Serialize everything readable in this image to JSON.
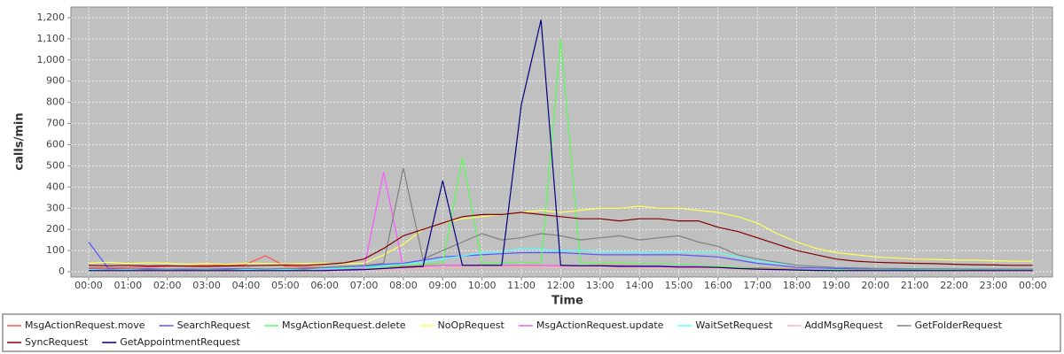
{
  "chart_data": {
    "type": "line",
    "x_label": "Time",
    "y_label": "calls/min",
    "xlim": [
      -0.45,
      24.5
    ],
    "ylim": [
      -25,
      1250
    ],
    "grid": true,
    "legend": "bottom",
    "xticks": [
      {
        "value": 0,
        "label": "00:00"
      },
      {
        "value": 1,
        "label": "01:00"
      },
      {
        "value": 2,
        "label": "02:00"
      },
      {
        "value": 3,
        "label": "03:00"
      },
      {
        "value": 4,
        "label": "04:00"
      },
      {
        "value": 5,
        "label": "05:00"
      },
      {
        "value": 6,
        "label": "06:00"
      },
      {
        "value": 7,
        "label": "07:00"
      },
      {
        "value": 8,
        "label": "08:00"
      },
      {
        "value": 9,
        "label": "09:00"
      },
      {
        "value": 10,
        "label": "10:00"
      },
      {
        "value": 11,
        "label": "11:00"
      },
      {
        "value": 12,
        "label": "12:00"
      },
      {
        "value": 13,
        "label": "13:00"
      },
      {
        "value": 14,
        "label": "14:00"
      },
      {
        "value": 15,
        "label": "15:00"
      },
      {
        "value": 16,
        "label": "16:00"
      },
      {
        "value": 17,
        "label": "17:00"
      },
      {
        "value": 18,
        "label": "18:00"
      },
      {
        "value": 19,
        "label": "19:00"
      },
      {
        "value": 20,
        "label": "20:00"
      },
      {
        "value": 21,
        "label": "21:00"
      },
      {
        "value": 22,
        "label": "22:00"
      },
      {
        "value": 23,
        "label": "23:00"
      },
      {
        "value": 24,
        "label": "00:00"
      }
    ],
    "yticks": [
      0,
      100,
      200,
      300,
      400,
      500,
      600,
      700,
      800,
      900,
      {
        "value": 1000,
        "label": "1,000"
      },
      {
        "value": 1100,
        "label": "1,100"
      },
      {
        "value": 1200,
        "label": "1,200"
      }
    ],
    "x": [
      0,
      0.5,
      1,
      1.5,
      2,
      2.5,
      3,
      3.5,
      4,
      4.5,
      5,
      5.5,
      6,
      6.5,
      7,
      7.5,
      8,
      8.5,
      9,
      9.5,
      10,
      10.5,
      11,
      11.5,
      12,
      12.5,
      13,
      13.5,
      14,
      14.5,
      15,
      15.5,
      16,
      16.5,
      17,
      17.5,
      18,
      18.5,
      19,
      19.5,
      20,
      20.5,
      21,
      21.5,
      22,
      22.5,
      23,
      23.5,
      24
    ],
    "series": [
      {
        "name": "MsgActionRequest.move",
        "color": "#ff5555",
        "values": [
          20,
          18,
          20,
          22,
          25,
          28,
          30,
          32,
          35,
          75,
          25,
          22,
          20,
          20,
          22,
          25,
          25,
          28,
          30,
          30,
          32,
          30,
          30,
          30,
          28,
          28,
          30,
          30,
          28,
          28,
          25,
          25,
          22,
          20,
          18,
          15,
          12,
          10,
          10,
          10,
          10,
          10,
          10,
          10,
          10,
          10,
          10,
          10,
          10
        ]
      },
      {
        "name": "SearchRequest",
        "color": "#5555ff",
        "values": [
          140,
          15,
          12,
          14,
          12,
          12,
          12,
          14,
          15,
          12,
          14,
          15,
          18,
          20,
          25,
          35,
          40,
          55,
          70,
          75,
          80,
          85,
          90,
          90,
          90,
          85,
          80,
          80,
          80,
          80,
          80,
          75,
          70,
          55,
          40,
          30,
          20,
          18,
          15,
          14,
          14,
          13,
          12,
          12,
          12,
          12,
          12,
          12,
          12
        ]
      },
      {
        "name": "MsgActionRequest.delete",
        "color": "#55ff55",
        "values": [
          10,
          8,
          8,
          8,
          8,
          8,
          8,
          8,
          8,
          8,
          8,
          10,
          12,
          15,
          20,
          25,
          30,
          35,
          40,
          540,
          40,
          40,
          45,
          40,
          1100,
          40,
          40,
          40,
          38,
          38,
          35,
          30,
          25,
          20,
          15,
          12,
          10,
          10,
          10,
          8,
          8,
          8,
          8,
          8,
          8,
          8,
          8,
          8,
          8
        ]
      },
      {
        "name": "NoOpRequest",
        "color": "#ffff55",
        "values": [
          40,
          45,
          38,
          42,
          40,
          36,
          38,
          35,
          40,
          38,
          36,
          38,
          40,
          38,
          40,
          80,
          130,
          200,
          230,
          250,
          260,
          270,
          280,
          290,
          280,
          290,
          300,
          300,
          310,
          300,
          300,
          290,
          280,
          260,
          230,
          180,
          140,
          110,
          90,
          80,
          70,
          65,
          60,
          58,
          55,
          55,
          52,
          50,
          50
        ]
      },
      {
        "name": "MsgActionRequest.update",
        "color": "#ff55ff",
        "values": [
          5,
          5,
          5,
          5,
          5,
          5,
          5,
          5,
          5,
          5,
          5,
          5,
          8,
          10,
          15,
          470,
          20,
          25,
          30,
          30,
          30,
          30,
          30,
          30,
          28,
          28,
          28,
          28,
          28,
          28,
          25,
          25,
          20,
          15,
          12,
          10,
          8,
          8,
          6,
          6,
          5,
          5,
          5,
          5,
          5,
          5,
          5,
          5,
          5
        ]
      },
      {
        "name": "WaitSetRequest",
        "color": "#55ffff",
        "values": [
          10,
          10,
          10,
          10,
          10,
          10,
          10,
          10,
          10,
          10,
          10,
          12,
          14,
          18,
          22,
          28,
          35,
          45,
          60,
          75,
          90,
          95,
          110,
          105,
          100,
          100,
          95,
          95,
          90,
          90,
          95,
          90,
          90,
          70,
          50,
          40,
          30,
          25,
          20,
          18,
          16,
          15,
          15,
          14,
          14,
          13,
          12,
          12,
          12
        ]
      },
      {
        "name": "AddMsgRequest",
        "color": "#ffafaf",
        "values": [
          3,
          3,
          3,
          3,
          3,
          3,
          3,
          3,
          3,
          3,
          3,
          3,
          4,
          5,
          8,
          10,
          12,
          15,
          18,
          20,
          20,
          20,
          22,
          20,
          20,
          20,
          20,
          18,
          18,
          18,
          18,
          16,
          15,
          12,
          10,
          8,
          6,
          5,
          5,
          4,
          4,
          4,
          3,
          3,
          3,
          3,
          3,
          3,
          3
        ]
      },
      {
        "name": "GetFolderRequest",
        "color": "#808080",
        "values": [
          15,
          12,
          14,
          10,
          12,
          10,
          12,
          10,
          15,
          12,
          15,
          12,
          20,
          25,
          30,
          40,
          490,
          60,
          100,
          140,
          180,
          150,
          160,
          180,
          170,
          150,
          160,
          170,
          150,
          160,
          170,
          140,
          120,
          80,
          60,
          45,
          30,
          25,
          20,
          18,
          16,
          15,
          14,
          14,
          13,
          12,
          12,
          12,
          12
        ]
      },
      {
        "name": "SyncRequest",
        "color": "#800000",
        "values": [
          30,
          28,
          30,
          27,
          28,
          26,
          25,
          27,
          28,
          30,
          32,
          30,
          35,
          42,
          60,
          110,
          170,
          200,
          230,
          260,
          270,
          270,
          280,
          270,
          260,
          250,
          250,
          240,
          250,
          250,
          240,
          240,
          210,
          190,
          160,
          130,
          100,
          80,
          60,
          50,
          45,
          42,
          40,
          38,
          35,
          33,
          32,
          30,
          30
        ]
      },
      {
        "name": "GetAppointmentRequest",
        "color": "#000080",
        "values": [
          5,
          5,
          5,
          5,
          5,
          5,
          5,
          5,
          5,
          5,
          5,
          5,
          5,
          8,
          10,
          15,
          20,
          25,
          430,
          30,
          30,
          30,
          790,
          1190,
          30,
          28,
          28,
          25,
          25,
          25,
          22,
          22,
          20,
          15,
          12,
          10,
          8,
          6,
          5,
          5,
          5,
          5,
          5,
          5,
          5,
          5,
          5,
          5,
          5
        ]
      }
    ]
  }
}
